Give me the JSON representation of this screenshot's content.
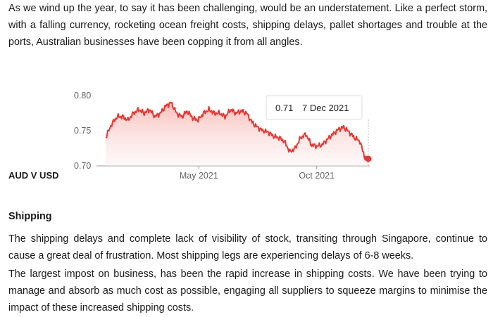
{
  "intro_text": "As we wind up the year, to say it has been challenging, would be an understatement. Like a perfect storm, with a falling currency, rocketing ocean freight costs, shipping delays, pallet shortages and trouble at the ports, Australian businesses have been copping it from all angles.",
  "chart_caption": "AUD V USD",
  "chart_data": {
    "type": "area",
    "series": [
      {
        "x": [
          "2020-12-31",
          "2021-01-08",
          "2021-01-15",
          "2021-01-22",
          "2021-01-29",
          "2021-02-05",
          "2021-02-12",
          "2021-02-19",
          "2021-02-26",
          "2021-03-05",
          "2021-03-12",
          "2021-03-19",
          "2021-03-26",
          "2021-04-02",
          "2021-04-09",
          "2021-04-16",
          "2021-04-23",
          "2021-04-30",
          "2021-05-07",
          "2021-05-14",
          "2021-05-21",
          "2021-05-28",
          "2021-06-04",
          "2021-06-11",
          "2021-06-18",
          "2021-06-25",
          "2021-07-02",
          "2021-07-09",
          "2021-07-16",
          "2021-07-23",
          "2021-07-30",
          "2021-08-06",
          "2021-08-13",
          "2021-08-20",
          "2021-08-27",
          "2021-09-03",
          "2021-09-10",
          "2021-09-17",
          "2021-09-24",
          "2021-10-01",
          "2021-10-08",
          "2021-10-15",
          "2021-10-22",
          "2021-10-29",
          "2021-11-05",
          "2021-11-12",
          "2021-11-19",
          "2021-11-26",
          "2021-12-03",
          "2021-12-07"
        ],
        "values": [
          0.74,
          0.76,
          0.77,
          0.77,
          0.765,
          0.775,
          0.78,
          0.775,
          0.78,
          0.77,
          0.775,
          0.785,
          0.79,
          0.775,
          0.77,
          0.778,
          0.768,
          0.765,
          0.775,
          0.78,
          0.775,
          0.775,
          0.77,
          0.78,
          0.775,
          0.778,
          0.775,
          0.762,
          0.755,
          0.75,
          0.748,
          0.742,
          0.74,
          0.735,
          0.72,
          0.725,
          0.74,
          0.745,
          0.73,
          0.728,
          0.73,
          0.738,
          0.745,
          0.752,
          0.755,
          0.748,
          0.74,
          0.735,
          0.71,
          0.71
        ]
      }
    ],
    "x_ticks": [
      "May 2021",
      "Oct 2021"
    ],
    "y_ticks": [
      "0.80",
      "0.75",
      "0.70"
    ],
    "ylim": [
      0.7,
      0.8
    ],
    "tooltip": {
      "value": "0.71",
      "date": "7 Dec 2021"
    },
    "colors": {
      "line": "#e53935",
      "fill": "#fbd9d6"
    }
  },
  "shipping_heading": "Shipping",
  "shipping_para_1": "The shipping delays and complete lack of visibility of stock, transiting through Singapore, continue to cause a great deal of frustration. Most shipping legs are experiencing delays of 6-8 weeks.",
  "shipping_para_2": "The largest impost on business, has been the rapid increase in shipping costs. We have been trying to manage and absorb as much cost as possible, engaging all suppliers to squeeze margins to minimise the impact of these increased shipping costs."
}
